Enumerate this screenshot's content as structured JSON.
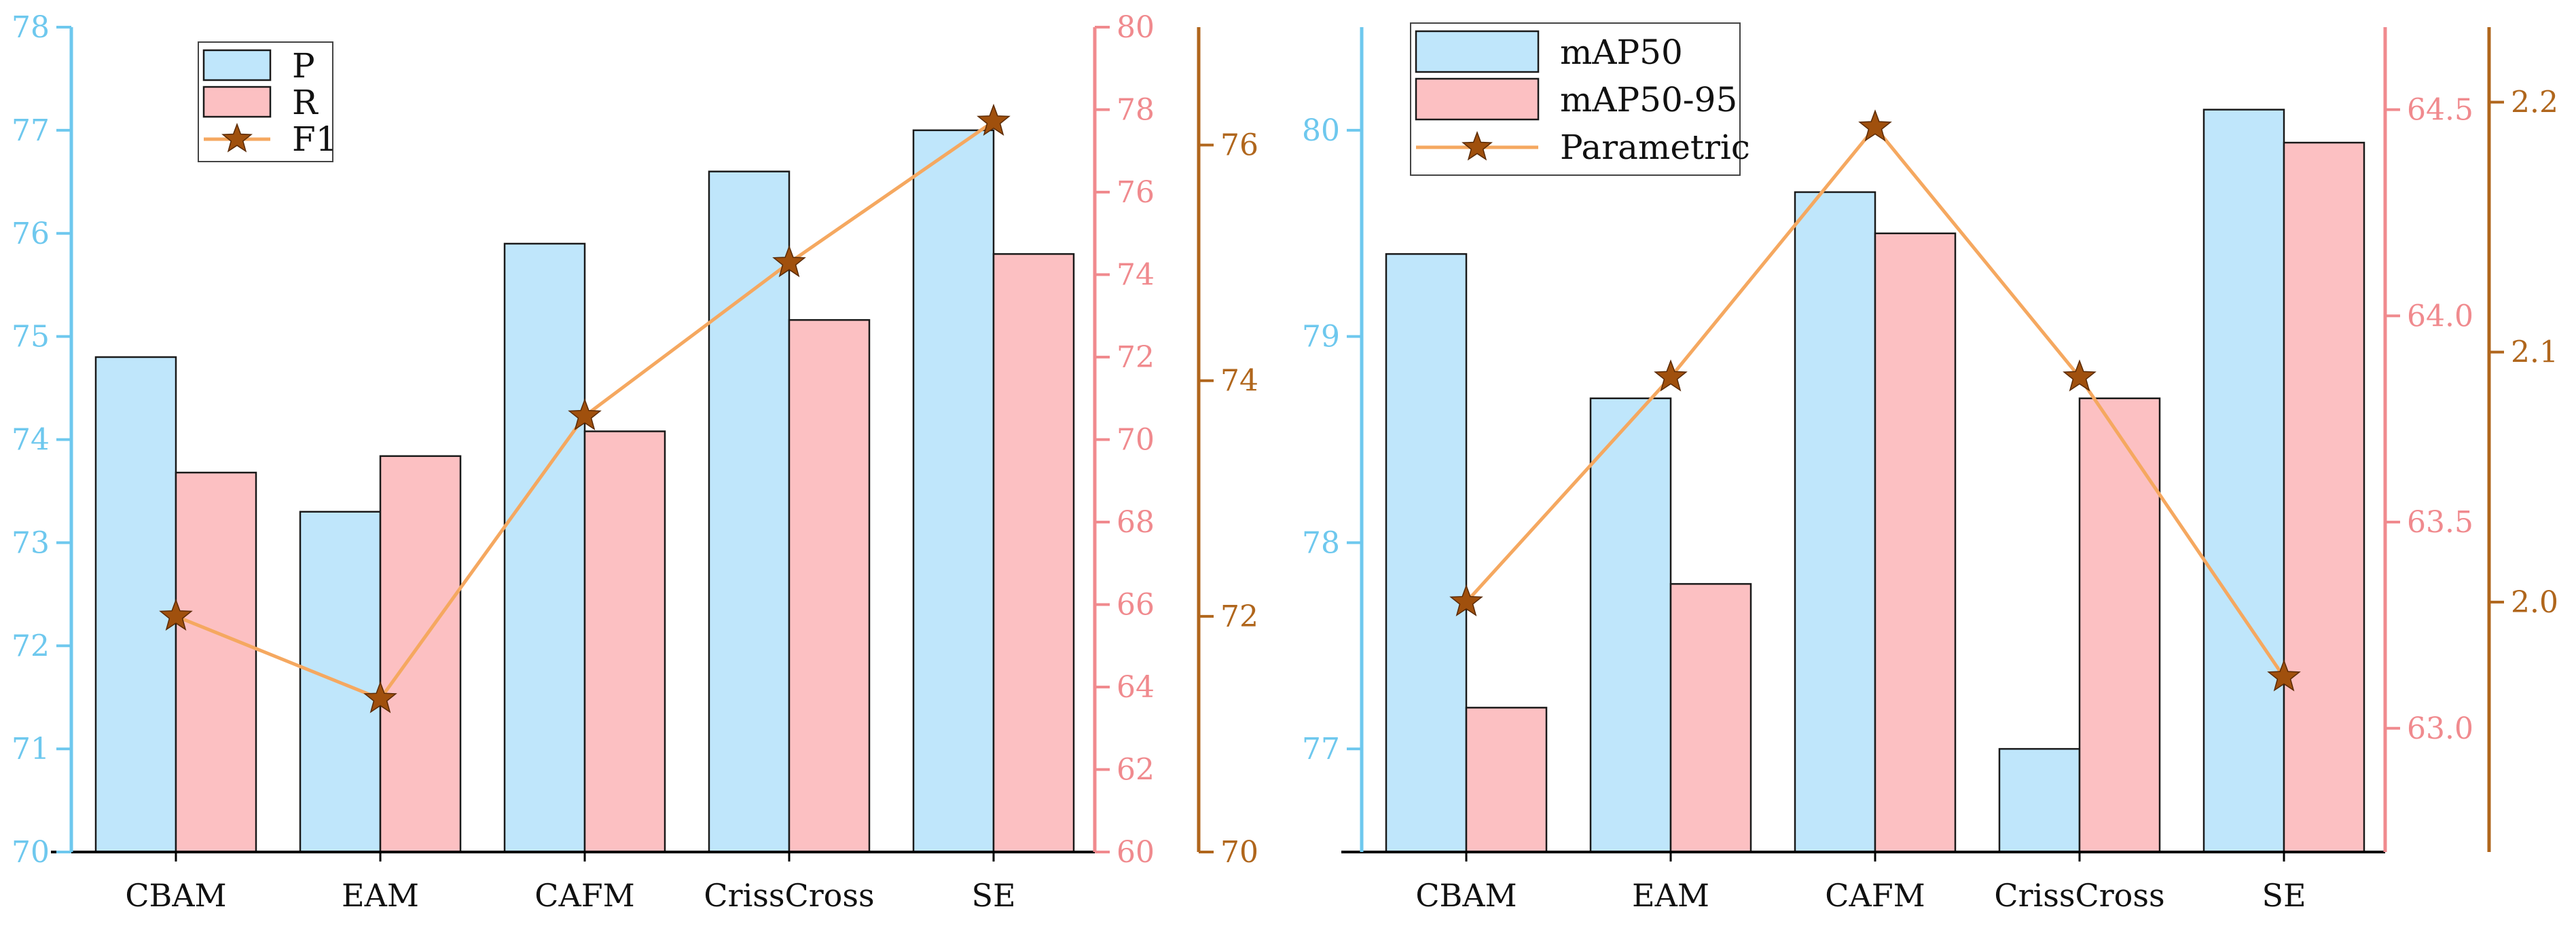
{
  "colors": {
    "bar_primary": "#bfe6fb",
    "bar_secondary": "#fcc0c2",
    "bar_edge": "#1a1a1a",
    "line": "#f5a860",
    "marker": "#a0500d",
    "axis_left": "#6ec8ee",
    "axis_right1": "#f08a8e",
    "axis_right2": "#b0661c",
    "frame": "#000000"
  },
  "chart_data": [
    {
      "type": "bar",
      "categories": [
        "CBAM",
        "EAM",
        "CAFM",
        "CrissCross",
        "SE"
      ],
      "series": [
        {
          "name": "P",
          "kind": "bar",
          "axis": "left",
          "values": [
            74.8,
            73.3,
            75.9,
            76.6,
            77.0
          ]
        },
        {
          "name": "R",
          "kind": "bar",
          "axis": "right1",
          "values": [
            69.2,
            69.6,
            70.2,
            72.9,
            74.5
          ]
        },
        {
          "name": "F1",
          "kind": "line",
          "axis": "right2",
          "values": [
            72.0,
            71.3,
            73.7,
            75.0,
            76.2
          ]
        }
      ],
      "axes": {
        "left": {
          "range": [
            70,
            78
          ],
          "ticks": [
            "70",
            "71",
            "72",
            "73",
            "74",
            "75",
            "76",
            "77",
            "78"
          ]
        },
        "right1": {
          "range": [
            60,
            80
          ],
          "ticks": [
            "60",
            "62",
            "64",
            "66",
            "68",
            "70",
            "72",
            "74",
            "76",
            "78",
            "80"
          ]
        },
        "right2": {
          "range": [
            70,
            77
          ],
          "ticks": [
            "70",
            "72",
            "74",
            "76"
          ]
        }
      },
      "legend": {
        "entries": [
          "P",
          "R",
          "F1"
        ],
        "position": "top-left"
      }
    },
    {
      "type": "bar",
      "categories": [
        "CBAM",
        "EAM",
        "CAFM",
        "CrissCross",
        "SE"
      ],
      "series": [
        {
          "name": "mAP50",
          "kind": "bar",
          "axis": "left",
          "values": [
            79.4,
            78.7,
            79.7,
            77.0,
            80.1
          ]
        },
        {
          "name": "mAP50-95",
          "kind": "bar",
          "axis": "right1",
          "values": [
            63.05,
            63.35,
            64.2,
            63.8,
            64.42
          ]
        },
        {
          "name": "Parametric",
          "kind": "line",
          "axis": "right2",
          "values": [
            2.0,
            2.09,
            2.19,
            2.09,
            1.97
          ]
        }
      ],
      "axes": {
        "left": {
          "range": [
            76.5,
            80.5
          ],
          "ticks": [
            "77",
            "78",
            "79",
            "80"
          ]
        },
        "right1": {
          "range": [
            62.7,
            64.7
          ],
          "ticks": [
            "63.0",
            "63.5",
            "64.0",
            "64.5"
          ]
        },
        "right2": {
          "range": [
            1.9,
            2.23
          ],
          "ticks": [
            "2.0",
            "2.1",
            "2.2"
          ]
        }
      },
      "legend": {
        "entries": [
          "mAP50",
          "mAP50-95",
          "Parametric"
        ],
        "position": "top-left"
      }
    }
  ]
}
